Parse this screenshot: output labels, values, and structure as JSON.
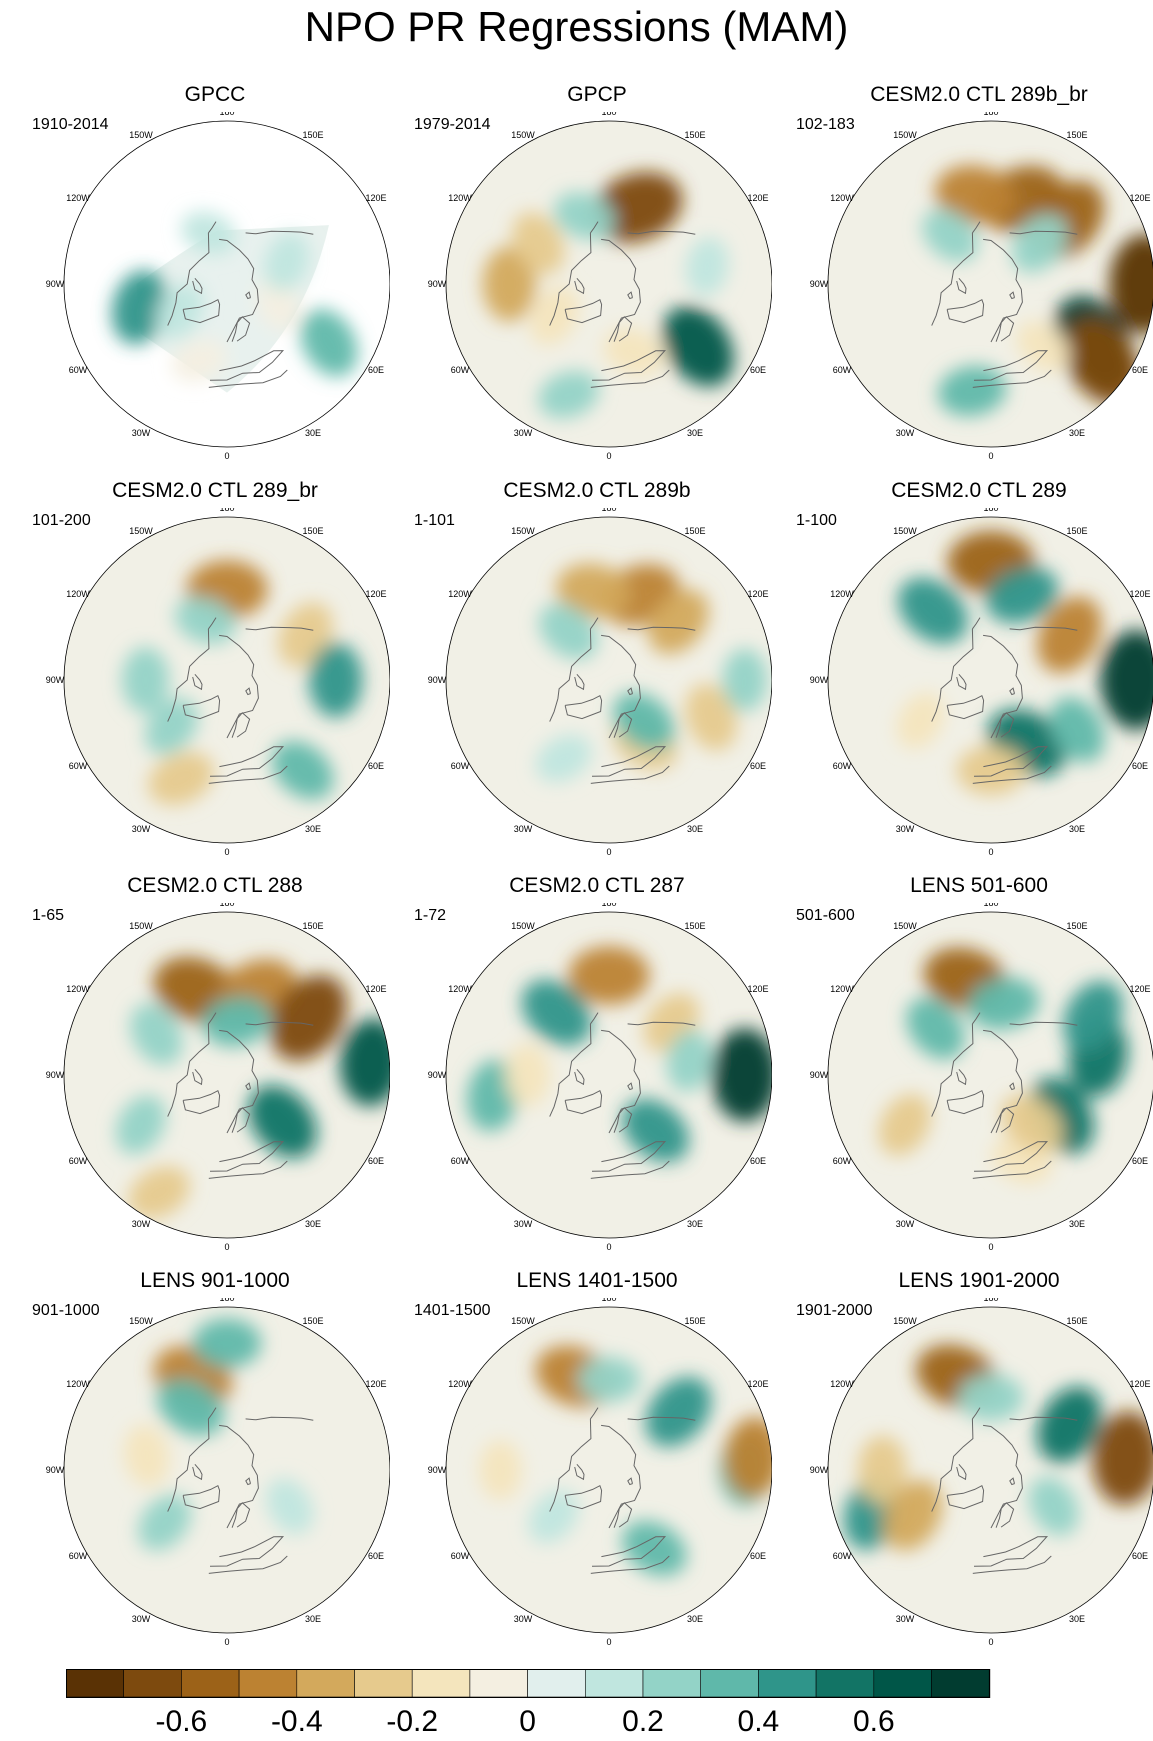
{
  "title": "NPO PR Regressions (MAM)",
  "lon_labels": [
    "180",
    "150E",
    "120E",
    "90E",
    "60E",
    "30E",
    "0",
    "30W",
    "60W",
    "90W",
    "120W",
    "150W"
  ],
  "colorbar": {
    "colors": [
      "#5a3205",
      "#7d4a0e",
      "#9c6218",
      "#bc8232",
      "#d3a95c",
      "#e6ca8d",
      "#f4e5bd",
      "#f4efe1",
      "#e1efed",
      "#c0e6df",
      "#93d3c7",
      "#5fb8aa",
      "#2f958a",
      "#127465",
      "#005648",
      "#013c30"
    ],
    "labels": [
      "-0.6",
      "-0.4",
      "-0.2",
      "0",
      "0.2",
      "0.4",
      "0.6"
    ]
  },
  "chart_data": [
    {
      "type": "heatmap",
      "title": "GPCC",
      "period": "1910-2014",
      "masked_data": true,
      "blobs": [
        {
          "lon": 285,
          "lat": 40,
          "v": 0.4
        },
        {
          "lon": 60,
          "lat": 25,
          "v": 0.35
        },
        {
          "lon": 300,
          "lat": 60,
          "v": 0.15
        },
        {
          "lon": 200,
          "lat": 60,
          "v": 0.1
        },
        {
          "lon": 340,
          "lat": 45,
          "v": -0.1
        },
        {
          "lon": 70,
          "lat": 60,
          "v": -0.1
        },
        {
          "lon": 110,
          "lat": 55,
          "v": 0.15
        }
      ]
    },
    {
      "type": "heatmap",
      "title": "GPCP",
      "period": "1979-2014",
      "blobs": [
        {
          "lon": 160,
          "lat": 45,
          "v": -0.7
        },
        {
          "lon": 55,
          "lat": 30,
          "v": 0.6
        },
        {
          "lon": 270,
          "lat": 35,
          "v": -0.4
        },
        {
          "lon": 240,
          "lat": 45,
          "v": -0.25
        },
        {
          "lon": 20,
          "lat": 50,
          "v": -0.2
        },
        {
          "lon": 340,
          "lat": 25,
          "v": 0.2
        },
        {
          "lon": 100,
          "lat": 35,
          "v": 0.15
        },
        {
          "lon": 300,
          "lat": 55,
          "v": -0.2
        },
        {
          "lon": 200,
          "lat": 50,
          "v": 0.2
        }
      ]
    },
    {
      "type": "heatmap",
      "title": "CESM2.0 CTL 289b_br",
      "period": "102-183",
      "blobs": [
        {
          "lon": 160,
          "lat": 40,
          "v": -0.6
        },
        {
          "lon": 130,
          "lat": 35,
          "v": -0.6
        },
        {
          "lon": 190,
          "lat": 40,
          "v": -0.5
        },
        {
          "lon": 60,
          "lat": 25,
          "v": 0.8
        },
        {
          "lon": 55,
          "lat": 15,
          "v": -0.7
        },
        {
          "lon": 90,
          "lat": 5,
          "v": -0.8
        },
        {
          "lon": 350,
          "lat": 30,
          "v": 0.3
        },
        {
          "lon": 130,
          "lat": 55,
          "v": 0.25
        },
        {
          "lon": 220,
          "lat": 55,
          "v": 0.2
        },
        {
          "lon": 40,
          "lat": 45,
          "v": -0.15
        }
      ]
    },
    {
      "type": "heatmap",
      "title": "CESM2.0 CTL 289_br",
      "period": "101-200",
      "blobs": [
        {
          "lon": 180,
          "lat": 40,
          "v": -0.5
        },
        {
          "lon": 120,
          "lat": 40,
          "v": -0.3
        },
        {
          "lon": 335,
          "lat": 30,
          "v": -0.3
        },
        {
          "lon": 40,
          "lat": 25,
          "v": 0.3
        },
        {
          "lon": 270,
          "lat": 45,
          "v": 0.25
        },
        {
          "lon": 200,
          "lat": 55,
          "v": 0.2
        },
        {
          "lon": 310,
          "lat": 50,
          "v": 0.2
        },
        {
          "lon": 90,
          "lat": 30,
          "v": 0.4
        }
      ]
    },
    {
      "type": "heatmap",
      "title": "CESM2.0 CTL 289b",
      "period": "1-101",
      "blobs": [
        {
          "lon": 160,
          "lat": 40,
          "v": -0.5
        },
        {
          "lon": 190,
          "lat": 40,
          "v": -0.4
        },
        {
          "lon": 130,
          "lat": 40,
          "v": -0.35
        },
        {
          "lon": 70,
          "lat": 30,
          "v": -0.3
        },
        {
          "lon": 30,
          "lat": 50,
          "v": -0.3
        },
        {
          "lon": 90,
          "lat": 15,
          "v": 0.2
        },
        {
          "lon": 220,
          "lat": 55,
          "v": 0.25
        },
        {
          "lon": 40,
          "lat": 60,
          "v": 0.3
        },
        {
          "lon": 330,
          "lat": 40,
          "v": 0.15
        }
      ]
    },
    {
      "type": "heatmap",
      "title": "CESM2.0 CTL 289",
      "period": "1-100",
      "blobs": [
        {
          "lon": 180,
          "lat": 25,
          "v": -0.6
        },
        {
          "lon": 120,
          "lat": 40,
          "v": -0.5
        },
        {
          "lon": 220,
          "lat": 40,
          "v": 0.45
        },
        {
          "lon": 160,
          "lat": 40,
          "v": 0.4
        },
        {
          "lon": 90,
          "lat": 10,
          "v": 0.8
        },
        {
          "lon": 30,
          "lat": 50,
          "v": 0.55
        },
        {
          "lon": 0,
          "lat": 40,
          "v": -0.3
        },
        {
          "lon": 300,
          "lat": 45,
          "v": -0.15
        },
        {
          "lon": 60,
          "lat": 35,
          "v": 0.3
        }
      ]
    },
    {
      "type": "heatmap",
      "title": "CESM2.0 CTL 288",
      "period": "1-65",
      "blobs": [
        {
          "lon": 200,
          "lat": 40,
          "v": -0.6
        },
        {
          "lon": 160,
          "lat": 40,
          "v": -0.5
        },
        {
          "lon": 125,
          "lat": 35,
          "v": -0.7
        },
        {
          "lon": 170,
          "lat": 60,
          "v": 0.3
        },
        {
          "lon": 240,
          "lat": 45,
          "v": 0.25
        },
        {
          "lon": 50,
          "lat": 50,
          "v": 0.5
        },
        {
          "lon": 330,
          "lat": 15,
          "v": -0.25
        },
        {
          "lon": 95,
          "lat": 10,
          "v": 0.6
        },
        {
          "lon": 300,
          "lat": 35,
          "v": 0.2
        }
      ]
    },
    {
      "type": "heatmap",
      "title": "CESM2.0 CTL 287",
      "period": "1-72",
      "blobs": [
        {
          "lon": 180,
          "lat": 35,
          "v": -0.5
        },
        {
          "lon": 220,
          "lat": 45,
          "v": 0.45
        },
        {
          "lon": 130,
          "lat": 45,
          "v": -0.25
        },
        {
          "lon": 90,
          "lat": 15,
          "v": 0.7
        },
        {
          "lon": 280,
          "lat": 25,
          "v": 0.35
        },
        {
          "lon": 40,
          "lat": 50,
          "v": 0.4
        },
        {
          "lon": 270,
          "lat": 45,
          "v": -0.2
        },
        {
          "lon": 100,
          "lat": 45,
          "v": 0.2
        }
      ]
    },
    {
      "type": "heatmap",
      "title": "LENS 501-600",
      "period": "501-600",
      "blobs": [
        {
          "lon": 195,
          "lat": 35,
          "v": -0.55
        },
        {
          "lon": 170,
          "lat": 50,
          "v": 0.35
        },
        {
          "lon": 230,
          "lat": 50,
          "v": 0.3
        },
        {
          "lon": 60,
          "lat": 45,
          "v": 0.5
        },
        {
          "lon": 100,
          "lat": 30,
          "v": 0.5
        },
        {
          "lon": 120,
          "lat": 25,
          "v": 0.4
        },
        {
          "lon": 300,
          "lat": 35,
          "v": -0.25
        },
        {
          "lon": 20,
          "lat": 40,
          "v": -0.2
        },
        {
          "lon": 40,
          "lat": 55,
          "v": -0.3
        }
      ]
    },
    {
      "type": "heatmap",
      "title": "LENS 901-1000",
      "period": "901-1000",
      "blobs": [
        {
          "lon": 200,
          "lat": 35,
          "v": -0.5
        },
        {
          "lon": 180,
          "lat": 20,
          "v": 0.3
        },
        {
          "lon": 210,
          "lat": 50,
          "v": 0.35
        },
        {
          "lon": 260,
          "lat": 45,
          "v": -0.2
        },
        {
          "lon": 310,
          "lat": 45,
          "v": 0.2
        },
        {
          "lon": 60,
          "lat": 50,
          "v": 0.15
        }
      ]
    },
    {
      "type": "heatmap",
      "title": "LENS 1401-1500",
      "period": "1401-1500",
      "blobs": [
        {
          "lon": 200,
          "lat": 35,
          "v": -0.5
        },
        {
          "lon": 180,
          "lat": 40,
          "v": 0.2
        },
        {
          "lon": 130,
          "lat": 40,
          "v": 0.45
        },
        {
          "lon": 90,
          "lat": 15,
          "v": 0.35
        },
        {
          "lon": 95,
          "lat": 10,
          "v": -0.5
        },
        {
          "lon": 30,
          "lat": 40,
          "v": 0.3
        },
        {
          "lon": 270,
          "lat": 30,
          "v": -0.15
        },
        {
          "lon": 310,
          "lat": 50,
          "v": 0.15
        }
      ]
    },
    {
      "type": "heatmap",
      "title": "LENS 1901-2000",
      "period": "1901-2000",
      "blobs": [
        {
          "lon": 200,
          "lat": 35,
          "v": -0.55
        },
        {
          "lon": 120,
          "lat": 40,
          "v": 0.5
        },
        {
          "lon": 95,
          "lat": 15,
          "v": -0.7
        },
        {
          "lon": 290,
          "lat": 20,
          "v": 0.4
        },
        {
          "lon": 270,
          "lat": 30,
          "v": -0.3
        },
        {
          "lon": 300,
          "lat": 40,
          "v": -0.4
        },
        {
          "lon": 180,
          "lat": 50,
          "v": 0.25
        },
        {
          "lon": 60,
          "lat": 50,
          "v": 0.2
        }
      ]
    }
  ]
}
